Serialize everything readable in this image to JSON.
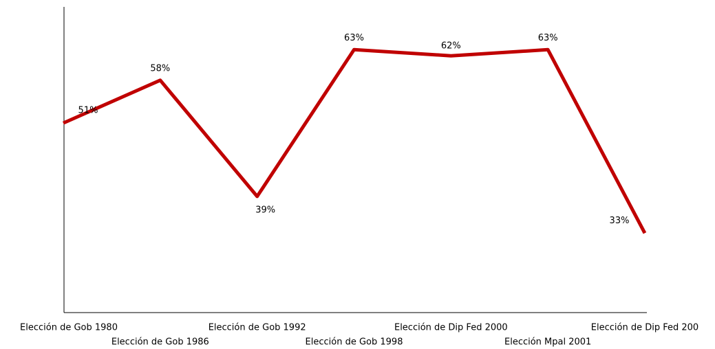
{
  "chart_data": {
    "type": "line",
    "categories": [
      "Elección de Gob 1980",
      "Elección de Gob 1986",
      "Elección de Gob 1992",
      "Elección de Gob 1998",
      "Elección de Dip Fed 2000",
      "Elección Mpal 2001",
      "Elección de Dip Fed 200"
    ],
    "series": [
      {
        "name": null,
        "color": "#c00000",
        "values": [
          51,
          58,
          39,
          63,
          62,
          63,
          33
        ],
        "value_labels": [
          "51%",
          "58%",
          "39%",
          "63%",
          "62%",
          "63%",
          "33%"
        ]
      }
    ],
    "ylim": [
      20,
      70
    ]
  }
}
